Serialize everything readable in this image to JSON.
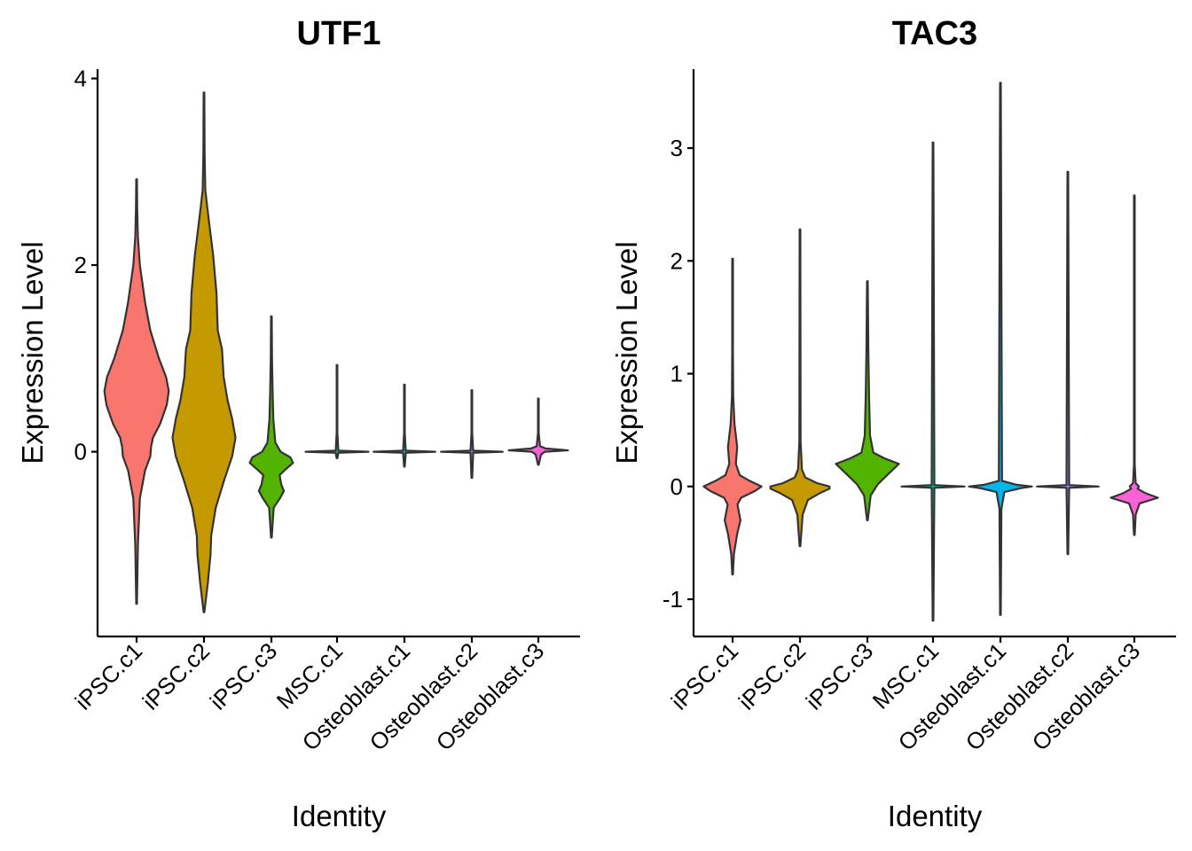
{
  "chart_data": [
    {
      "type": "violin",
      "title": "UTF1",
      "xlabel": "Identity",
      "ylabel": "Expression Level",
      "categories": [
        "iPSC.c1",
        "iPSC.c2",
        "iPSC.c3",
        "MSC.c1",
        "Osteoblast.c1",
        "Osteoblast.c2",
        "Osteoblast.c3"
      ],
      "yticks": [
        0,
        2,
        4
      ],
      "ylim": [
        -1.98,
        4.1
      ],
      "colors": [
        "#F8766D",
        "#C49A00",
        "#53B400",
        "#00C094",
        "#00B6EB",
        "#A58AFF",
        "#FB61D7"
      ],
      "series": [
        {
          "category": "iPSC.c1",
          "min": -1.63,
          "max": 2.92,
          "profile": [
            [
              -1.63,
              0.01
            ],
            [
              -1.0,
              0.04
            ],
            [
              -0.5,
              0.1
            ],
            [
              -0.2,
              0.26
            ],
            [
              -0.05,
              0.42
            ],
            [
              0.05,
              0.44
            ],
            [
              0.15,
              0.5
            ],
            [
              0.3,
              0.72
            ],
            [
              0.5,
              0.92
            ],
            [
              0.65,
              0.98
            ],
            [
              0.8,
              0.9
            ],
            [
              1.0,
              0.68
            ],
            [
              1.3,
              0.42
            ],
            [
              1.6,
              0.26
            ],
            [
              2.0,
              0.1
            ],
            [
              2.3,
              0.04
            ],
            [
              2.6,
              0.02
            ],
            [
              2.92,
              0.01
            ]
          ]
        },
        {
          "category": "iPSC.c2",
          "min": -1.72,
          "max": 3.85,
          "profile": [
            [
              -1.72,
              0.01
            ],
            [
              -1.4,
              0.12
            ],
            [
              -1.1,
              0.2
            ],
            [
              -0.9,
              0.22
            ],
            [
              -0.6,
              0.36
            ],
            [
              -0.3,
              0.62
            ],
            [
              -0.05,
              0.86
            ],
            [
              0.15,
              0.96
            ],
            [
              0.35,
              0.86
            ],
            [
              0.55,
              0.72
            ],
            [
              0.8,
              0.6
            ],
            [
              1.1,
              0.55
            ],
            [
              1.3,
              0.42
            ],
            [
              1.7,
              0.38
            ],
            [
              2.1,
              0.28
            ],
            [
              2.5,
              0.14
            ],
            [
              2.8,
              0.04
            ],
            [
              3.2,
              0.02
            ],
            [
              3.85,
              0.01
            ]
          ]
        },
        {
          "category": "iPSC.c3",
          "min": -0.92,
          "max": 1.45,
          "profile": [
            [
              -0.92,
              0.01
            ],
            [
              -0.6,
              0.07
            ],
            [
              -0.5,
              0.26
            ],
            [
              -0.42,
              0.38
            ],
            [
              -0.35,
              0.3
            ],
            [
              -0.25,
              0.25
            ],
            [
              -0.2,
              0.4
            ],
            [
              -0.12,
              0.66
            ],
            [
              -0.06,
              0.58
            ],
            [
              0.0,
              0.28
            ],
            [
              0.1,
              0.12
            ],
            [
              0.35,
              0.06
            ],
            [
              0.6,
              0.04
            ],
            [
              1.0,
              0.02
            ],
            [
              1.45,
              0.01
            ]
          ]
        },
        {
          "category": "MSC.c1",
          "min": -0.07,
          "max": 0.93,
          "profile": [
            [
              -0.07,
              0.01
            ],
            [
              -0.012,
              0.04
            ],
            [
              0.0,
              0.96
            ],
            [
              0.012,
              0.04
            ],
            [
              0.2,
              0.01
            ],
            [
              0.93,
              0.01
            ]
          ]
        },
        {
          "category": "Osteoblast.c1",
          "min": -0.16,
          "max": 0.72,
          "profile": [
            [
              -0.16,
              0.01
            ],
            [
              -0.012,
              0.04
            ],
            [
              0.0,
              0.94
            ],
            [
              0.012,
              0.04
            ],
            [
              0.2,
              0.01
            ],
            [
              0.72,
              0.01
            ]
          ]
        },
        {
          "category": "Osteoblast.c2",
          "min": -0.28,
          "max": 0.66,
          "profile": [
            [
              -0.28,
              0.01
            ],
            [
              -0.012,
              0.04
            ],
            [
              0.0,
              0.94
            ],
            [
              0.012,
              0.04
            ],
            [
              0.2,
              0.01
            ],
            [
              0.66,
              0.01
            ]
          ]
        },
        {
          "category": "Osteoblast.c3",
          "min": -0.14,
          "max": 0.57,
          "profile": [
            [
              -0.14,
              0.01
            ],
            [
              -0.03,
              0.08
            ],
            [
              0.0,
              0.2
            ],
            [
              0.015,
              0.9
            ],
            [
              0.035,
              0.22
            ],
            [
              0.06,
              0.05
            ],
            [
              0.2,
              0.01
            ],
            [
              0.57,
              0.01
            ]
          ]
        }
      ]
    },
    {
      "type": "violin",
      "title": "TAC3",
      "xlabel": "Identity",
      "ylabel": "Expression Level",
      "categories": [
        "iPSC.c1",
        "iPSC.c2",
        "iPSC.c3",
        "MSC.c1",
        "Osteoblast.c1",
        "Osteoblast.c2",
        "Osteoblast.c3"
      ],
      "yticks": [
        -1,
        0,
        1,
        2,
        3
      ],
      "ylim": [
        -1.33,
        3.7
      ],
      "colors": [
        "#F8766D",
        "#C49A00",
        "#53B400",
        "#00C094",
        "#00B6EB",
        "#A58AFF",
        "#FB61D7"
      ],
      "series": [
        {
          "category": "iPSC.c1",
          "min": -0.78,
          "max": 2.02,
          "profile": [
            [
              -0.78,
              0.01
            ],
            [
              -0.6,
              0.04
            ],
            [
              -0.42,
              0.14
            ],
            [
              -0.3,
              0.24
            ],
            [
              -0.24,
              0.2
            ],
            [
              -0.16,
              0.15
            ],
            [
              -0.1,
              0.26
            ],
            [
              -0.04,
              0.68
            ],
            [
              0.0,
              0.88
            ],
            [
              0.05,
              0.52
            ],
            [
              0.1,
              0.22
            ],
            [
              0.2,
              0.1
            ],
            [
              0.35,
              0.14
            ],
            [
              0.55,
              0.06
            ],
            [
              0.8,
              0.02
            ],
            [
              1.2,
              0.01
            ],
            [
              2.02,
              0.01
            ]
          ]
        },
        {
          "category": "iPSC.c2",
          "min": -0.53,
          "max": 2.28,
          "profile": [
            [
              -0.53,
              0.01
            ],
            [
              -0.25,
              0.08
            ],
            [
              -0.12,
              0.24
            ],
            [
              -0.06,
              0.6
            ],
            [
              -0.02,
              0.9
            ],
            [
              0.0,
              0.9
            ],
            [
              0.03,
              0.52
            ],
            [
              0.08,
              0.16
            ],
            [
              0.15,
              0.06
            ],
            [
              0.4,
              0.02
            ],
            [
              2.28,
              0.01
            ]
          ]
        },
        {
          "category": "iPSC.c3",
          "min": -0.3,
          "max": 1.82,
          "profile": [
            [
              -0.3,
              0.01
            ],
            [
              -0.2,
              0.05
            ],
            [
              -0.08,
              0.1
            ],
            [
              0.02,
              0.32
            ],
            [
              0.1,
              0.6
            ],
            [
              0.2,
              0.96
            ],
            [
              0.25,
              0.52
            ],
            [
              0.3,
              0.18
            ],
            [
              0.45,
              0.08
            ],
            [
              0.8,
              0.05
            ],
            [
              1.2,
              0.03
            ],
            [
              1.82,
              0.01
            ]
          ]
        },
        {
          "category": "MSC.c1",
          "min": -1.19,
          "max": 3.05,
          "profile": [
            [
              -1.19,
              0.01
            ],
            [
              -0.012,
              0.04
            ],
            [
              0.0,
              0.96
            ],
            [
              0.012,
              0.04
            ],
            [
              3.05,
              0.01
            ]
          ]
        },
        {
          "category": "Osteoblast.c1",
          "min": -1.14,
          "max": 3.58,
          "profile": [
            [
              -1.14,
              0.01
            ],
            [
              -0.2,
              0.03
            ],
            [
              -0.05,
              0.12
            ],
            [
              -0.015,
              0.62
            ],
            [
              0.0,
              0.96
            ],
            [
              0.015,
              0.5
            ],
            [
              0.05,
              0.05
            ],
            [
              3.58,
              0.01
            ]
          ]
        },
        {
          "category": "Osteoblast.c2",
          "min": -0.6,
          "max": 2.79,
          "profile": [
            [
              -0.6,
              0.01
            ],
            [
              -0.012,
              0.04
            ],
            [
              0.0,
              0.94
            ],
            [
              0.012,
              0.04
            ],
            [
              2.79,
              0.01
            ]
          ]
        },
        {
          "category": "Osteoblast.c3",
          "min": -0.43,
          "max": 2.58,
          "profile": [
            [
              -0.43,
              0.01
            ],
            [
              -0.25,
              0.04
            ],
            [
              -0.15,
              0.16
            ],
            [
              -0.1,
              0.72
            ],
            [
              -0.06,
              0.34
            ],
            [
              -0.02,
              0.1
            ],
            [
              0.0,
              0.14
            ],
            [
              0.03,
              0.04
            ],
            [
              0.2,
              0.01
            ],
            [
              2.58,
              0.01
            ]
          ]
        }
      ]
    }
  ]
}
